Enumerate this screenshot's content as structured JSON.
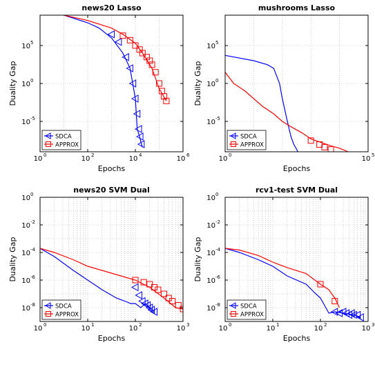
{
  "chart_data": [
    {
      "type": "line",
      "title": "news20 Lasso",
      "xlabel": "Epochs",
      "ylabel": "Duality Gap",
      "xscale": "log",
      "yscale": "log",
      "xlim_exp": [
        0,
        6
      ],
      "ylim_exp": [
        -9,
        9
      ],
      "xticks_exp": [
        0,
        2,
        4,
        6
      ],
      "yticks_exp": [
        -5,
        0,
        5
      ],
      "grid": true,
      "legend_position": "bottom-left",
      "series": [
        {
          "name": "SDCA",
          "color": "#0000ff",
          "marker": "triangle-left",
          "x": [
            1,
            10,
            100,
            300,
            1000,
            3000,
            6000,
            10000,
            12000,
            15000,
            18000,
            20000
          ],
          "y": [
            5000000000,
            1000000000,
            100000000,
            20000000,
            1000000,
            10000,
            100,
            0.01,
            1e-06,
            1e-07,
            1e-08,
            4e-09
          ],
          "marker_x": [
            1000,
            2000,
            4000,
            6000,
            8000,
            10000,
            12000,
            14000,
            16000,
            18000
          ],
          "marker_y": [
            3000000,
            300000,
            3000,
            100,
            1,
            0.01,
            0.0001,
            1e-06,
            1e-07,
            1e-08
          ]
        },
        {
          "name": "APPROX",
          "color": "#ff0000",
          "marker": "square",
          "x": [
            1,
            10,
            100,
            1000,
            3000,
            10000,
            20000,
            50000,
            100000,
            200000
          ],
          "y": [
            5000000000,
            1000000000,
            200000000,
            20000000,
            3000000,
            200000,
            10000,
            100,
            0.2,
            0.005
          ],
          "marker_x": [
            3000,
            6000,
            10000,
            15000,
            20000,
            30000,
            40000,
            50000,
            70000,
            100000,
            130000,
            160000,
            200000
          ],
          "marker_y": [
            2000000,
            500000,
            100000,
            30000,
            10000,
            3000,
            1000,
            300,
            30,
            1,
            0.1,
            0.02,
            0.005
          ]
        }
      ]
    },
    {
      "type": "line",
      "title": "mushrooms Lasso",
      "xlabel": "Epochs",
      "ylabel": "Duality Gap",
      "xscale": "log",
      "yscale": "log",
      "xlim_exp": [
        0,
        5
      ],
      "ylim_exp": [
        -9,
        9
      ],
      "xticks_exp": [
        0,
        5
      ],
      "yticks_exp": [
        -5,
        0,
        5
      ],
      "grid": true,
      "legend_position": "bottom-left",
      "series": [
        {
          "name": "SDCA",
          "color": "#0000ff",
          "marker": "triangle-left",
          "x": [
            1,
            10,
            30,
            50,
            80,
            100,
            150,
            200,
            250,
            300,
            350
          ],
          "y": [
            5000,
            1000,
            300,
            100,
            1,
            0.01,
            1e-05,
            1e-07,
            1e-08,
            3e-09,
            1e-09
          ],
          "marker_x": [],
          "marker_y": []
        },
        {
          "name": "APPROX",
          "color": "#ff0000",
          "marker": "square",
          "x": [
            1,
            2,
            5,
            10,
            20,
            50,
            100,
            200,
            500,
            1000,
            5000,
            10000,
            20000
          ],
          "y": [
            30,
            1,
            0.1,
            0.01,
            0.001,
            0.0001,
            1e-05,
            2e-06,
            3e-07,
            5e-08,
            6e-09,
            3e-09,
            1e-09
          ],
          "marker_x": [
            1000,
            2000,
            3000,
            5000
          ],
          "marker_y": [
            3e-08,
            9e-09,
            4e-09,
            2e-09
          ]
        }
      ]
    },
    {
      "type": "line",
      "title": "news20 SVM Dual",
      "xlabel": "Epochs",
      "ylabel": "Duality Gap",
      "xscale": "log",
      "yscale": "log",
      "xlim_exp": [
        0,
        3
      ],
      "ylim_exp": [
        -9,
        0
      ],
      "xticks_exp": [
        0,
        1,
        2,
        3
      ],
      "yticks_exp": [
        0,
        -2,
        -4,
        -6,
        -8
      ],
      "grid": true,
      "legend_position": "bottom-left",
      "series": [
        {
          "name": "SDCA",
          "color": "#0000ff",
          "marker": "triangle-left",
          "x": [
            1,
            2,
            5,
            10,
            20,
            40,
            60,
            80,
            100,
            130,
            160,
            200,
            250
          ],
          "y": [
            0.0002,
            5e-05,
            5e-06,
            1e-06,
            2e-07,
            5e-08,
            3e-08,
            2e-08,
            2e-08,
            1e-08,
            2e-08,
            1e-08,
            5e-09
          ],
          "marker_x": [
            100,
            120,
            140,
            160,
            180,
            200,
            220,
            250
          ],
          "marker_y": [
            3e-07,
            8e-08,
            3e-08,
            2e-08,
            1.5e-08,
            1e-08,
            7e-09,
            5e-09
          ]
        },
        {
          "name": "APPROX",
          "color": "#ff0000",
          "marker": "square",
          "x": [
            1,
            2,
            5,
            10,
            20,
            50,
            100,
            200,
            400,
            700,
            1000
          ],
          "y": [
            0.0002,
            0.0001,
            3e-05,
            1e-05,
            5e-06,
            2e-06,
            1e-06,
            3e-07,
            5e-08,
            1e-08,
            8e-09
          ],
          "marker_x": [
            100,
            150,
            200,
            250,
            300,
            400,
            500,
            600,
            800,
            1000
          ],
          "marker_y": [
            1e-06,
            7e-07,
            5e-07,
            3e-07,
            2e-07,
            1e-07,
            5e-08,
            3e-08,
            1.5e-08,
            8e-09
          ]
        }
      ]
    },
    {
      "type": "line",
      "title": "rcv1-test SVM Dual",
      "xlabel": "Epochs",
      "ylabel": "Duality Gap",
      "xscale": "log",
      "yscale": "log",
      "xlim_exp": [
        0,
        3
      ],
      "ylim_exp": [
        -9,
        0
      ],
      "xticks_exp": [
        0,
        1,
        2,
        3
      ],
      "yticks_exp": [
        0,
        -2,
        -4,
        -6,
        -8
      ],
      "grid": true,
      "legend_position": "bottom-left",
      "series": [
        {
          "name": "SDCA",
          "color": "#0000ff",
          "marker": "triangle-left",
          "x": [
            1,
            2,
            5,
            10,
            20,
            50,
            80,
            100,
            150,
            200,
            300,
            500,
            700
          ],
          "y": [
            0.0002,
            0.0001,
            3e-05,
            1e-05,
            2e-06,
            5e-07,
            1e-07,
            5e-08,
            4e-09,
            5e-09,
            4e-09,
            3e-09,
            2e-09
          ],
          "marker_x": [
            200,
            250,
            300,
            350,
            400,
            450,
            500,
            600,
            700
          ],
          "marker_y": [
            5e-09,
            4e-09,
            5e-09,
            4e-09,
            3e-09,
            4e-09,
            3e-09,
            3e-09,
            2e-09
          ]
        },
        {
          "name": "APPROX",
          "color": "#ff0000",
          "marker": "square",
          "x": [
            1,
            2,
            5,
            10,
            20,
            50,
            100,
            150,
            200,
            250
          ],
          "y": [
            0.0002,
            0.00015,
            6e-05,
            2e-05,
            8e-06,
            3e-06,
            5e-07,
            2e-07,
            5e-08,
            1e-08
          ],
          "marker_x": [
            100,
            200
          ],
          "marker_y": [
            5e-07,
            3e-08
          ]
        }
      ]
    }
  ]
}
